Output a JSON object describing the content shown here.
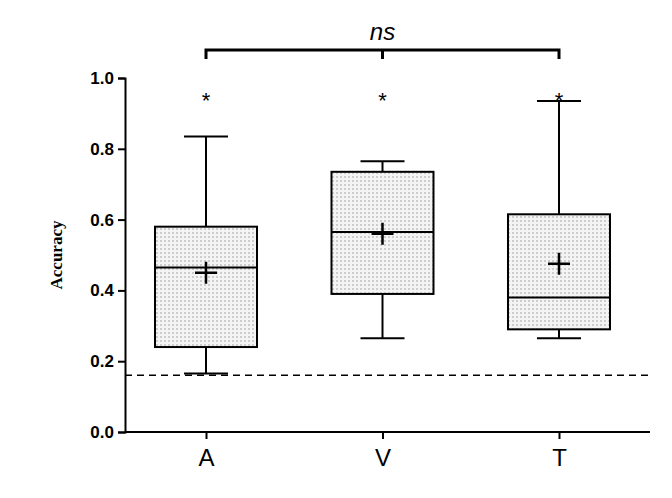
{
  "chart_data": {
    "type": "box",
    "y_label": "Accuracy",
    "categories": [
      "A",
      "V",
      "T"
    ],
    "min": [
      0.165,
      0.265,
      0.265
    ],
    "q1": [
      0.24,
      0.39,
      0.29
    ],
    "median": [
      0.465,
      0.565,
      0.38
    ],
    "q3": [
      0.58,
      0.735,
      0.615
    ],
    "max": [
      0.835,
      0.765,
      0.935
    ],
    "mean": [
      0.45,
      0.56,
      0.475
    ],
    "color": "#000000",
    "marker": "plus",
    "ylim": [
      0,
      1
    ],
    "yticks": [
      {
        "value": 0,
        "label": "0.0"
      },
      0.2,
      0.4,
      0.6,
      0.8,
      {
        "value": 1,
        "label": "1.0"
      }
    ],
    "annotations": [
      "*",
      "*",
      "*"
    ],
    "bracket": {
      "text": "ns",
      "from": "A",
      "to": "T",
      "tick": "V"
    },
    "reference_lines": [
      {
        "value": 0.16,
        "line_style": "dashed"
      }
    ]
  }
}
